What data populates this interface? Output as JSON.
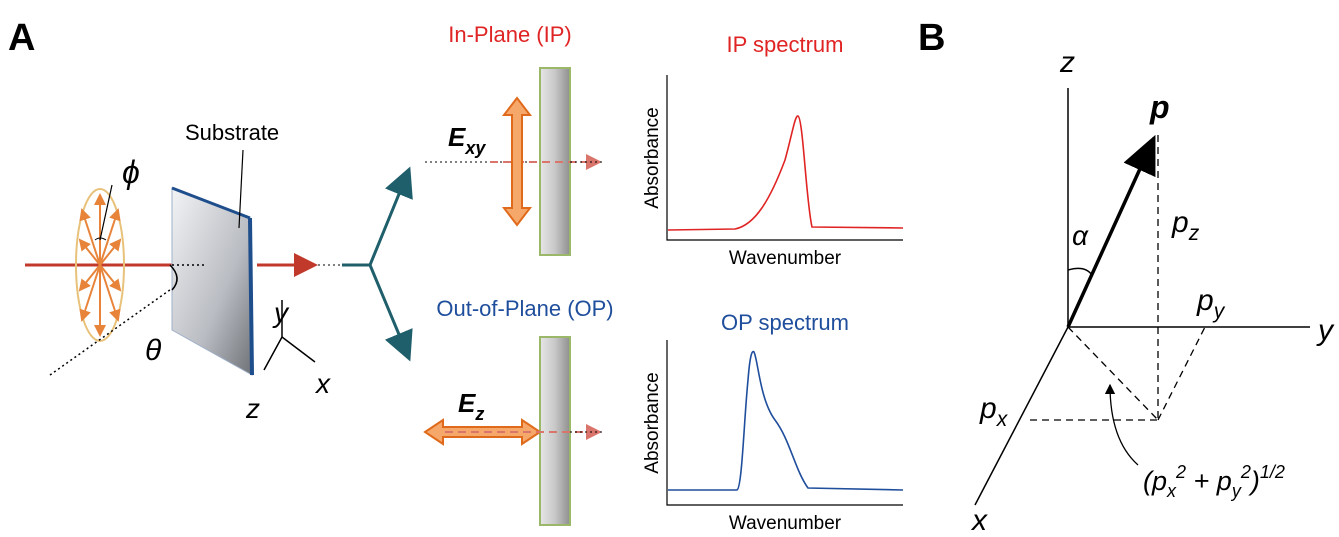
{
  "panel_a": {
    "label": "A",
    "substrate": "Substrate",
    "phi": "ϕ",
    "theta": "θ",
    "axes": {
      "y": "y",
      "x": "x",
      "z": "z"
    },
    "in_plane": {
      "title": "In-Plane (IP)",
      "field": {
        "symbol": "E",
        "subscript": "xy"
      },
      "spectrum": {
        "title": "IP spectrum",
        "y_label": "Absorbance",
        "x_label": "Wavenumber"
      }
    },
    "out_of_plane": {
      "title": "Out-of-Plane (OP)",
      "field": {
        "symbol": "E",
        "subscript": "z"
      },
      "spectrum": {
        "title": "OP spectrum",
        "y_label": "Absorbance",
        "x_label": "Wavenumber"
      }
    }
  },
  "panel_b": {
    "label": "B",
    "axes": {
      "z": "z",
      "y": "y",
      "x": "x"
    },
    "vector": "p",
    "angle": "α",
    "components": {
      "z": {
        "symbol": "p",
        "subscript": "z"
      },
      "y": {
        "symbol": "p",
        "subscript": "y"
      },
      "x": {
        "symbol": "p",
        "subscript": "x"
      }
    },
    "formula": [
      "(p",
      "x",
      "2",
      " + p",
      "y",
      "2",
      ")",
      "1/2"
    ]
  }
}
